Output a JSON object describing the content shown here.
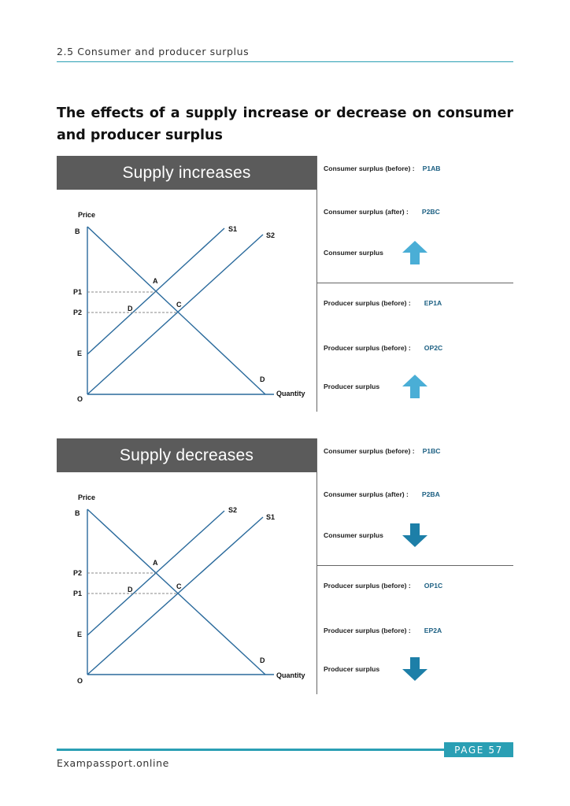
{
  "header": {
    "section": "2.5 Consumer and producer surplus"
  },
  "title": "The effects of a supply increase or decrease on consumer and producer surplus",
  "colors": {
    "accent": "#2a9fb4",
    "line": "#2a6a9c",
    "arrow": "#4aaed6",
    "arrow_down": "#1d7fa8",
    "banner": "#5b5b5b",
    "value": "#1b5f82"
  },
  "panels": [
    {
      "banner": "Supply increases",
      "chart": {
        "ylabel": "Price",
        "xlabel": "Quantity",
        "origin": "O",
        "points": {
          "B": "B",
          "A": "A",
          "C": "C",
          "D_inner": "D",
          "D_end": "D",
          "E": "E"
        },
        "price_upper": "P1",
        "price_lower": "P2",
        "line_upper": "S1",
        "line_lower": "S2"
      },
      "consumer": {
        "before_label": "Consumer surplus (before) :",
        "before_value": "P1AB",
        "after_label": "Consumer surplus (after) :",
        "after_value": "P2BC",
        "change_label": "Consumer surplus",
        "direction": "up-arrow-icon"
      },
      "producer": {
        "before_label": "Producer surplus (before) :",
        "before_value": "EP1A",
        "after_label": "Producer surplus (before) :",
        "after_value": "OP2C",
        "change_label": "Producer surplus",
        "direction": "up-arrow-icon"
      }
    },
    {
      "banner": "Supply decreases",
      "chart": {
        "ylabel": "Price",
        "xlabel": "Quantity",
        "origin": "O",
        "points": {
          "B": "B",
          "A": "A",
          "C": "C",
          "D_inner": "D",
          "D_end": "D",
          "E": "E"
        },
        "price_upper": "P2",
        "price_lower": "P1",
        "line_upper": "S2",
        "line_lower": "S1"
      },
      "consumer": {
        "before_label": "Consumer surplus (before) :",
        "before_value": "P1BC",
        "after_label": "Consumer surplus (after) :",
        "after_value": "P2BA",
        "change_label": "Consumer surplus",
        "direction": "down-arrow-icon"
      },
      "producer": {
        "before_label": "Producer surplus (before) :",
        "before_value": "OP1C",
        "after_label": "Producer surplus (before) :",
        "after_value": "EP2A",
        "change_label": "Producer surplus",
        "direction": "down-arrow-icon"
      }
    }
  ],
  "footer": {
    "page": "PAGE 57",
    "site": "Exampassport.online"
  }
}
